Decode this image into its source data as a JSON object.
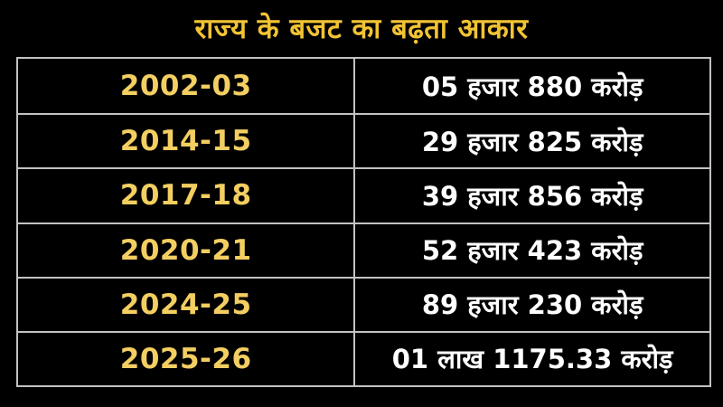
{
  "title": "राज्य के बजट का बढ़ता आकार",
  "colors": {
    "background": "#000000",
    "title_gold": "#F2C433",
    "year_gold": "#F3CE61",
    "value_white": "#ffffff",
    "border_gray": "#c2c2c2"
  },
  "table": {
    "rows": [
      {
        "year": "2002-03",
        "value": "05 हजार 880 करोड़"
      },
      {
        "year": "2014-15",
        "value": "29 हजार 825 करोड़"
      },
      {
        "year": "2017-18",
        "value": "39 हजार 856 करोड़"
      },
      {
        "year": "2020-21",
        "value": "52 हजार 423 करोड़"
      },
      {
        "year": "2024-25",
        "value": "89 हजार 230 करोड़"
      },
      {
        "year": "2025-26",
        "value": "01 लाख 1175.33 करोड़"
      }
    ]
  },
  "chart_data": {
    "type": "table",
    "title": "राज्य के बजट का बढ़ता आकार",
    "categories": [
      "2002-03",
      "2014-15",
      "2017-18",
      "2020-21",
      "2024-25",
      "2025-26"
    ],
    "values_text": [
      "05 हजार 880 करोड़",
      "29 हजार 825 करोड़",
      "39 हजार 856 करोड़",
      "52 हजार 423 करोड़",
      "89 हजार 230 करोड़",
      "01 लाख 1175.33 करोड़"
    ],
    "values_in_crore": [
      5880,
      29825,
      39856,
      52423,
      89230,
      101175.33
    ],
    "unit": "करोड़ (crore INR)"
  }
}
